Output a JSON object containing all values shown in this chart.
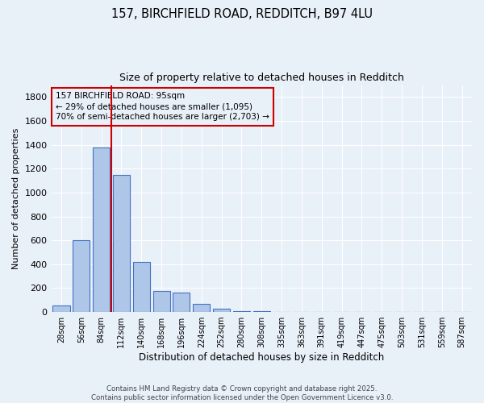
{
  "title_line1": "157, BIRCHFIELD ROAD, REDDITCH, B97 4LU",
  "title_line2": "Size of property relative to detached houses in Redditch",
  "xlabel": "Distribution of detached houses by size in Redditch",
  "ylabel": "Number of detached properties",
  "bar_labels": [
    "28sqm",
    "56sqm",
    "84sqm",
    "112sqm",
    "140sqm",
    "168sqm",
    "196sqm",
    "224sqm",
    "252sqm",
    "280sqm",
    "308sqm",
    "335sqm",
    "363sqm",
    "391sqm",
    "419sqm",
    "447sqm",
    "475sqm",
    "503sqm",
    "531sqm",
    "559sqm",
    "587sqm"
  ],
  "bar_values": [
    55,
    600,
    1380,
    1150,
    420,
    175,
    165,
    65,
    30,
    5,
    5,
    0,
    0,
    0,
    0,
    0,
    0,
    0,
    0,
    0,
    0
  ],
  "bar_color": "#aec6e8",
  "bar_edge_color": "#4472c4",
  "bg_color": "#e8f0f8",
  "grid_color": "#ffffff",
  "vline_x": 2.5,
  "vline_color": "#cc0000",
  "annotation_text": "157 BIRCHFIELD ROAD: 95sqm\n← 29% of detached houses are smaller (1,095)\n70% of semi-detached houses are larger (2,703) →",
  "annotation_box_color": "#cc0000",
  "ylim": [
    0,
    1900
  ],
  "yticks": [
    0,
    200,
    400,
    600,
    800,
    1000,
    1200,
    1400,
    1600,
    1800
  ],
  "footer_line1": "Contains HM Land Registry data © Crown copyright and database right 2025.",
  "footer_line2": "Contains public sector information licensed under the Open Government Licence v3.0."
}
